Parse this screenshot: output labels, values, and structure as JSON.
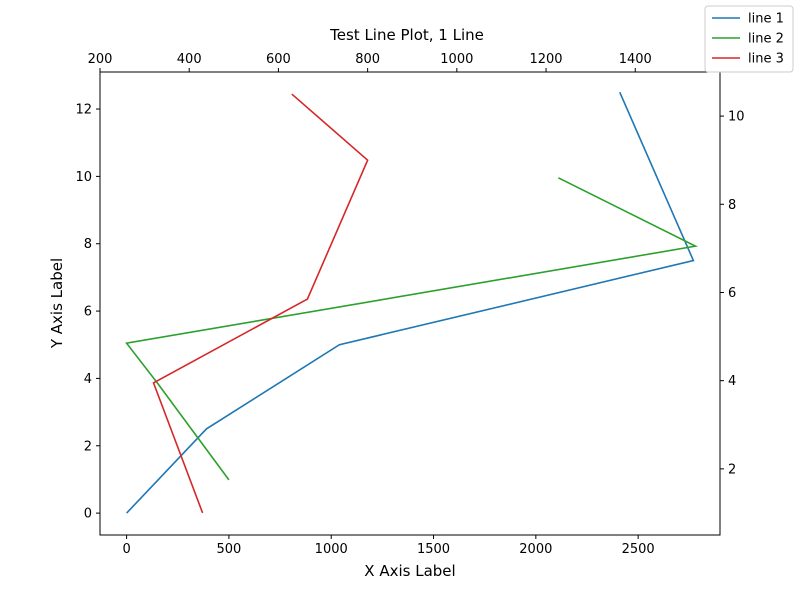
{
  "chart_data": {
    "type": "line",
    "title": "Test Line Plot, 1 Line",
    "xlabel": "X Axis Label",
    "ylabel": "Y Axis Label",
    "legend_position": "top-right",
    "grid": false,
    "bottom_x_axis": {
      "range": [
        -130,
        2900
      ],
      "ticks": [
        0,
        500,
        1000,
        1500,
        2000,
        2500
      ],
      "tick_labels": [
        "0",
        "500",
        "1000",
        "1500",
        "2000",
        "2500"
      ]
    },
    "top_x_axis": {
      "range": [
        200,
        1590
      ],
      "ticks": [
        200,
        400,
        600,
        800,
        1000,
        1200,
        1400
      ],
      "tick_labels": [
        "200",
        "400",
        "600",
        "800",
        "1000",
        "1200",
        "1400"
      ]
    },
    "left_y_axis": {
      "range": [
        -0.65,
        13.1
      ],
      "ticks": [
        0,
        2,
        4,
        6,
        8,
        10,
        12
      ],
      "tick_labels": [
        "0",
        "2",
        "4",
        "6",
        "8",
        "10",
        "12"
      ]
    },
    "right_y_axis": {
      "range": [
        0.5,
        11.0
      ],
      "ticks": [
        2,
        4,
        6,
        8,
        10
      ],
      "tick_labels": [
        "2",
        "4",
        "6",
        "8",
        "10"
      ]
    },
    "series": [
      {
        "name": "line 1",
        "color": "#1f77b4",
        "axes": "bottom-left",
        "points": [
          [
            0,
            0
          ],
          [
            390,
            2.5
          ],
          [
            1040,
            5.0
          ],
          [
            2770,
            7.5
          ],
          [
            2410,
            12.5
          ]
        ]
      },
      {
        "name": "line 2",
        "color": "#2ca02c",
        "axes": "bottom-right",
        "points": [
          [
            500,
            1.75
          ],
          [
            150,
            3.95
          ],
          [
            0,
            4.85
          ],
          [
            2780,
            7.05
          ],
          [
            2110,
            8.6
          ]
        ]
      },
      {
        "name": "line 3",
        "color": "#d62728",
        "axes": "top-right",
        "points": [
          [
            430,
            1.0
          ],
          [
            320,
            3.95
          ],
          [
            665,
            5.85
          ],
          [
            800,
            9.0
          ],
          [
            630,
            10.5
          ]
        ]
      }
    ]
  }
}
